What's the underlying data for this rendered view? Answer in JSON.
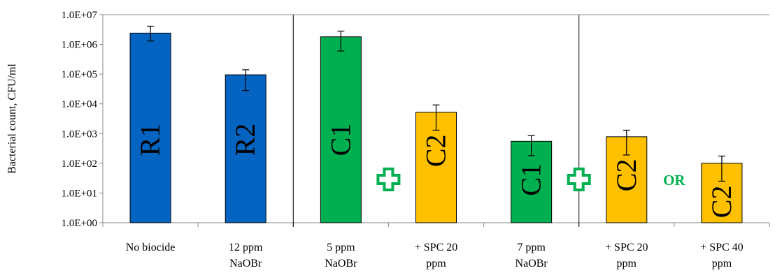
{
  "chart_data": {
    "type": "bar",
    "ylabel": "Bacterial count, CFU/ml",
    "yscale": "log",
    "ylim": [
      1,
      10000000
    ],
    "yticks": [
      "1.0E+00",
      "1.0E+01",
      "1.0E+02",
      "1.0E+03",
      "1.0E+04",
      "1.0E+05",
      "1.0E+06",
      "1.0E+07"
    ],
    "categories": [
      [
        "No biocide"
      ],
      [
        "12 ppm",
        "NaOBr"
      ],
      [
        "5 ppm",
        "NaOBr"
      ],
      [
        "+ SPC 20",
        "ppm"
      ],
      [
        "7 ppm",
        "NaOBr"
      ],
      [
        "+ SPC 20",
        "ppm"
      ],
      [
        "+ SPC 40",
        "ppm"
      ]
    ],
    "values": [
      2400000,
      95000,
      1800000,
      5200,
      550,
      780,
      100
    ],
    "error_low": [
      1300000,
      28000,
      600000,
      1300,
      180,
      190,
      25
    ],
    "error_high": [
      4100000,
      140000,
      2800000,
      9200,
      850,
      1300,
      175
    ],
    "bar_labels": [
      "R1",
      "R2",
      "C1",
      "C2",
      "C1",
      "C2",
      "C2"
    ],
    "bar_colors": [
      "#0563C1",
      "#0563C1",
      "#00B050",
      "#FFC000",
      "#00B050",
      "#FFC000",
      "#FFC000"
    ],
    "group_dividers_after": [
      1,
      4
    ],
    "annotations": [
      {
        "type": "plus-icon",
        "between": [
          2,
          3
        ],
        "color": "#00B050"
      },
      {
        "type": "plus-icon",
        "between": [
          4,
          5
        ],
        "color": "#00B050"
      },
      {
        "type": "text",
        "text": "OR",
        "between": [
          5,
          6
        ],
        "color": "#00B050"
      }
    ],
    "grid": false,
    "legend": "none"
  }
}
